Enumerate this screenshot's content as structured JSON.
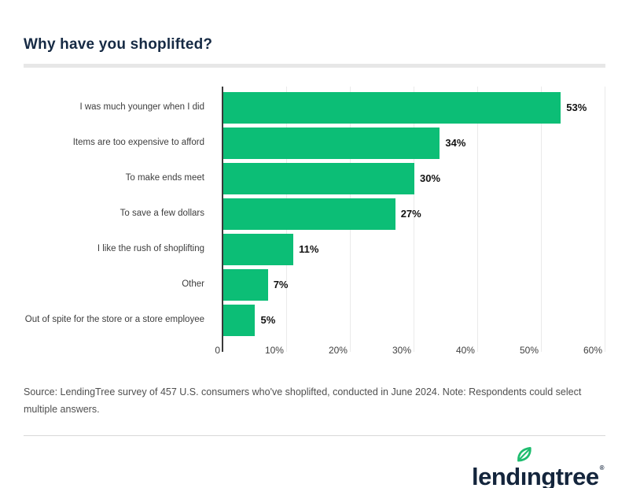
{
  "header": {
    "title": "Why have you shoplifted?",
    "title_color": "#162a44"
  },
  "chart_data": {
    "type": "bar",
    "orientation": "horizontal",
    "title": "Why have you shoplifted?",
    "categories": [
      "I was much younger when I did",
      "Items are too expensive to afford",
      "To make ends meet",
      "To save a few dollars",
      "I like the rush of shoplifting",
      "Other",
      "Out of spite for the store or a store employee"
    ],
    "values": [
      53,
      34,
      30,
      27,
      11,
      7,
      5
    ],
    "value_labels": [
      "53%",
      "34%",
      "30%",
      "27%",
      "11%",
      "7%",
      "5%"
    ],
    "x_ticks": [
      "0",
      "10%",
      "20%",
      "30%",
      "40%",
      "50%",
      "60%"
    ],
    "xlim": [
      0,
      60
    ],
    "xlabel": "",
    "ylabel": "",
    "grid": true,
    "legend": false,
    "bar_color": "#0cbe76",
    "axis_line_color": "#3a3a3a",
    "gridline_color": "#eaeaea"
  },
  "source": {
    "text": "Source: LendingTree survey of 457 U.S. consumers who've shoplifted, conducted in June 2024. Note: Respondents could select multiple answers."
  },
  "footer": {
    "logo": {
      "pre": "lend",
      "i": "ı",
      "post": "ngtree",
      "reg": "®"
    },
    "logo_color": "#14253c",
    "leaf_color": "#1fbd6f"
  }
}
